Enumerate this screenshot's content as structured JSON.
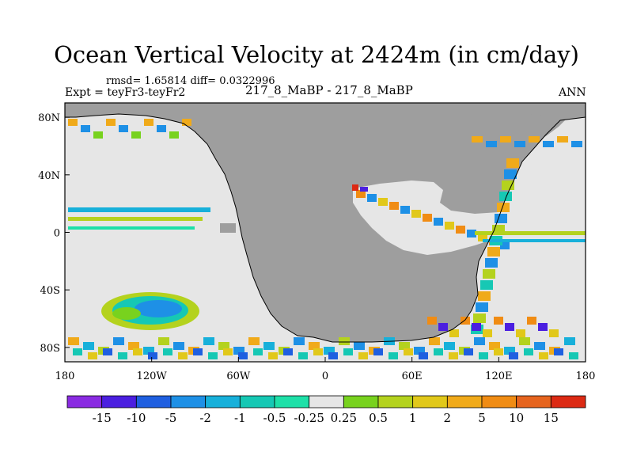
{
  "title": "Ocean Vertical Velocity at 2424m (in cm/day)",
  "stats_label": "rmsd= 1.65814 diff= 0.0322996",
  "left_subtitle": "Expt = teyFr3-teyFr2",
  "center_subtitle": "217_8_MaBP - 217_8_MaBP",
  "right_subtitle": "ANN",
  "chart_data": {
    "type": "heatmap",
    "title": "Ocean Vertical Velocity at 2424m (in cm/day)",
    "xlim": [
      -180,
      180
    ],
    "ylim": [
      -90,
      90
    ],
    "x_ticks": [
      {
        "value": -180,
        "label": "180"
      },
      {
        "value": -120,
        "label": "120W"
      },
      {
        "value": -60,
        "label": "60W"
      },
      {
        "value": 0,
        "label": "0"
      },
      {
        "value": 60,
        "label": "60E"
      },
      {
        "value": 120,
        "label": "120E"
      },
      {
        "value": 180,
        "label": "180"
      }
    ],
    "y_ticks": [
      {
        "value": 80,
        "label": "80N"
      },
      {
        "value": 40,
        "label": "40N"
      },
      {
        "value": 0,
        "label": "0"
      },
      {
        "value": -40,
        "label": "40S"
      },
      {
        "value": -80,
        "label": "80S"
      }
    ],
    "colorbar": {
      "colors": [
        "#8a2be2",
        "#4b1fe0",
        "#1f5fe0",
        "#1e90e6",
        "#17b0da",
        "#16c8b4",
        "#1ee0a8",
        "#e6e6e6",
        "#78d21e",
        "#b4d21e",
        "#e1c81a",
        "#f0aa1a",
        "#f08c14",
        "#e6641e",
        "#dc2a14"
      ],
      "labels": [
        "-15",
        "-10",
        "-5",
        "-2",
        "-1",
        "-0.5",
        "-0.25",
        "0.25",
        "0.5",
        "1",
        "2",
        "5",
        "10",
        "15"
      ]
    },
    "land_color": "#9e9e9e",
    "background_color": "#e6e6e6"
  }
}
